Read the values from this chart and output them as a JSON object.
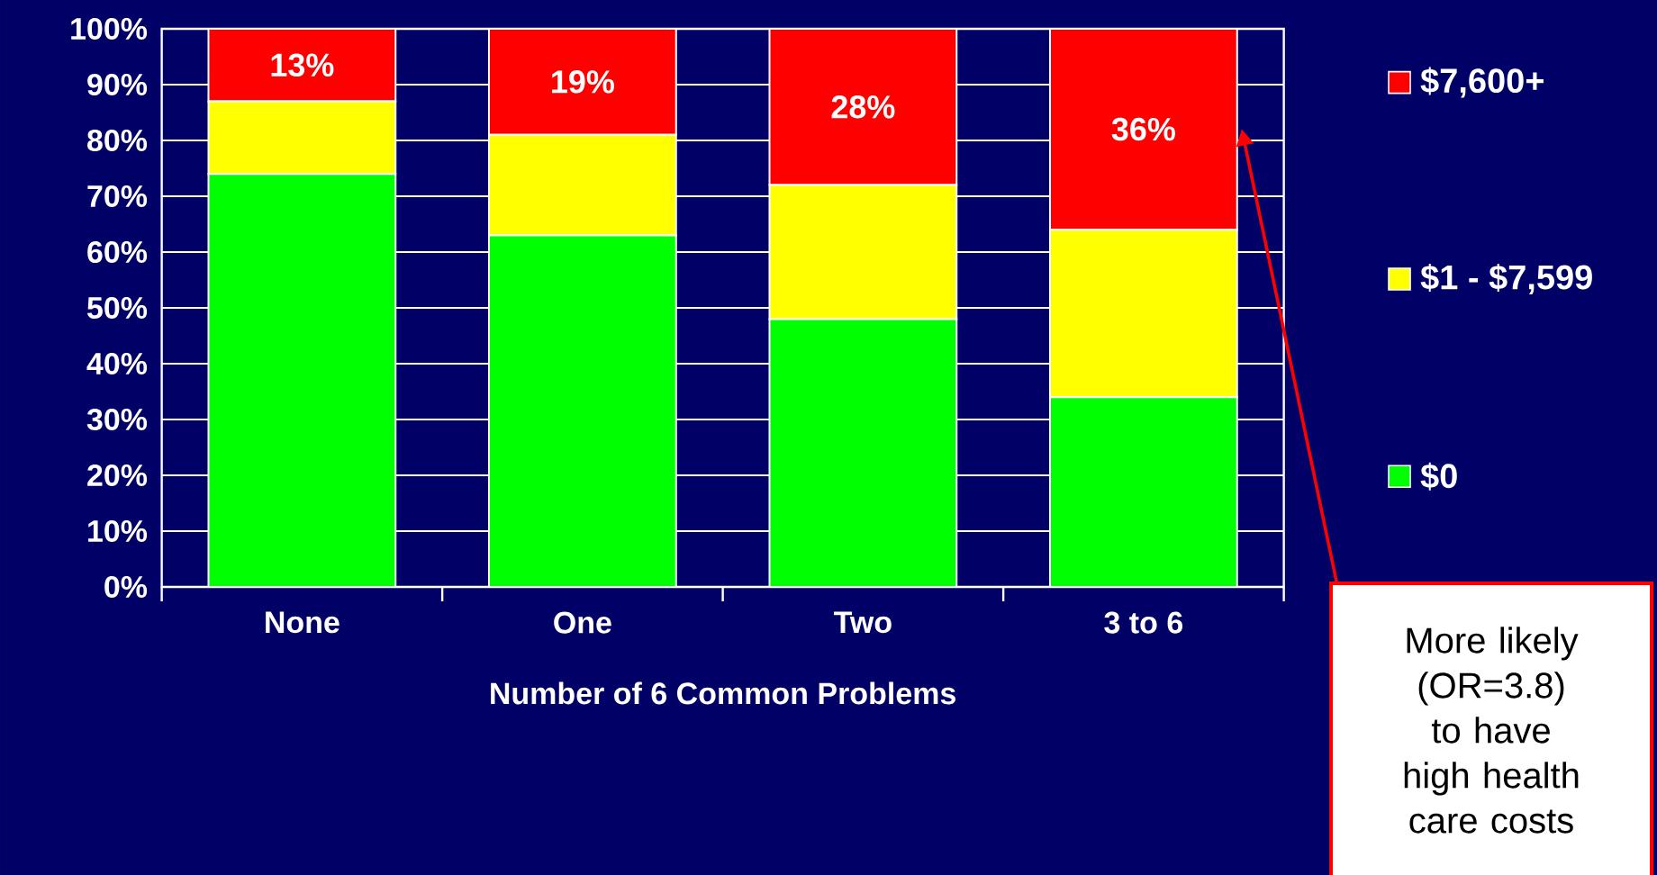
{
  "chart_data": {
    "type": "bar",
    "stacked": true,
    "categories": [
      "None",
      "One",
      "Two",
      "3 to 6"
    ],
    "xlabel": "Number of 6 Common Problems",
    "series": [
      {
        "name": "$0",
        "color": "#00ff00",
        "values": [
          74,
          63,
          48,
          34
        ]
      },
      {
        "name": "$1 - $7,599",
        "color": "#ffff00",
        "values": [
          13,
          18,
          24,
          30
        ]
      },
      {
        "name": "$7,600+",
        "color": "#ff0000",
        "values": [
          13,
          19,
          28,
          36
        ],
        "value_labels": [
          "13%",
          "19%",
          "28%",
          "36%"
        ]
      }
    ],
    "ylim": [
      0,
      100
    ],
    "yticks": [
      {
        "value": 0,
        "label": "0%"
      },
      {
        "value": 10,
        "label": "10%"
      },
      {
        "value": 20,
        "label": "20%"
      },
      {
        "value": 30,
        "label": "30%"
      },
      {
        "value": 40,
        "label": "40%"
      },
      {
        "value": 50,
        "label": "50%"
      },
      {
        "value": 60,
        "label": "60%"
      },
      {
        "value": 70,
        "label": "70%"
      },
      {
        "value": 80,
        "label": "80%"
      },
      {
        "value": 90,
        "label": "90%"
      },
      {
        "value": 100,
        "label": "100%"
      }
    ],
    "grid": "y",
    "legend": "right",
    "annotations": [
      "More likely (OR=3.8) to have high health care costs"
    ]
  }
}
